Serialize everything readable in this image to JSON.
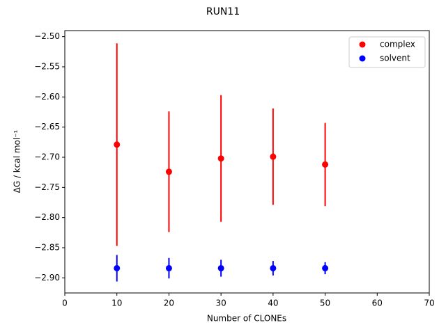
{
  "chart_data": {
    "type": "errorbar",
    "title": "RUN11",
    "x_label": "Number of CLONEs",
    "y_label": "ΔG / kcal mol⁻¹",
    "x": [
      10,
      20,
      30,
      40,
      50
    ],
    "series": [
      {
        "name": "complex",
        "color": "#ff0000",
        "values": [
          -2.679,
          -2.724,
          -2.702,
          -2.699,
          -2.712
        ],
        "errors": [
          0.168,
          0.1,
          0.105,
          0.08,
          0.069
        ]
      },
      {
        "name": "solvent",
        "color": "#0000ff",
        "values": [
          -2.884,
          -2.884,
          -2.884,
          -2.884,
          -2.884
        ],
        "errors": [
          0.022,
          0.017,
          0.014,
          0.012,
          0.01
        ]
      }
    ],
    "xlim": [
      0,
      70
    ],
    "xticks": [
      0,
      10,
      20,
      30,
      40,
      50,
      60,
      70
    ],
    "ylim": [
      -2.925,
      -2.49
    ],
    "yticks": [
      {
        "value": -2.9,
        "label": "−2.90"
      },
      {
        "value": -2.85,
        "label": "−2.85"
      },
      {
        "value": -2.8,
        "label": "−2.80"
      },
      {
        "value": -2.75,
        "label": "−2.75"
      },
      {
        "value": -2.7,
        "label": "−2.70"
      },
      {
        "value": -2.65,
        "label": "−2.65"
      },
      {
        "value": -2.6,
        "label": "−2.60"
      },
      {
        "value": -2.55,
        "label": "−2.55"
      },
      {
        "value": -2.5,
        "label": "−2.50"
      }
    ],
    "legend": "upper right",
    "grid": false
  }
}
